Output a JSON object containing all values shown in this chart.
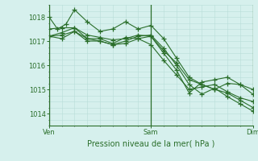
{
  "background_color": "#d6f0ed",
  "grid_color": "#b8ddd8",
  "line_color": "#2a6e2a",
  "marker": "+",
  "marker_size": 4,
  "title": "Pression niveau de la mer( hPa )",
  "xtick_labels": [
    "Ven",
    "Sam",
    "Dim"
  ],
  "xtick_positions": [
    0,
    48,
    96
  ],
  "ylim": [
    1013.5,
    1018.5
  ],
  "yticks": [
    1014,
    1015,
    1016,
    1017,
    1018
  ],
  "xlim": [
    0,
    96
  ],
  "series": [
    [
      0,
      1018.0,
      4,
      1017.5,
      8,
      1017.7,
      12,
      1018.3,
      18,
      1017.8,
      24,
      1017.4,
      30,
      1017.5,
      36,
      1017.8,
      42,
      1017.5,
      48,
      1017.65,
      54,
      1017.1,
      60,
      1016.3,
      66,
      1015.5,
      72,
      1015.2,
      78,
      1015.0,
      84,
      1014.85,
      90,
      1014.55,
      96,
      1014.25
    ],
    [
      0,
      1017.5,
      6,
      1017.55,
      12,
      1017.55,
      18,
      1017.1,
      24,
      1017.1,
      30,
      1016.9,
      36,
      1017.15,
      42,
      1017.1,
      48,
      1016.85,
      54,
      1016.2,
      60,
      1015.6,
      66,
      1015.0,
      72,
      1015.1,
      78,
      1015.2,
      84,
      1014.9,
      90,
      1014.65,
      96,
      1014.5
    ],
    [
      0,
      1017.2,
      6,
      1017.1,
      12,
      1017.4,
      18,
      1017.0,
      24,
      1017.0,
      30,
      1016.85,
      36,
      1016.9,
      42,
      1017.1,
      48,
      1017.2,
      54,
      1016.5,
      60,
      1015.8,
      66,
      1014.85,
      72,
      1015.3,
      78,
      1015.4,
      84,
      1015.5,
      90,
      1015.2,
      96,
      1015.0
    ],
    [
      0,
      1017.2,
      6,
      1017.35,
      12,
      1017.55,
      18,
      1017.25,
      24,
      1017.15,
      30,
      1017.05,
      36,
      1017.1,
      42,
      1017.25,
      48,
      1017.2,
      54,
      1016.6,
      60,
      1016.1,
      66,
      1015.4,
      72,
      1015.2,
      78,
      1015.0,
      84,
      1015.25,
      90,
      1015.2,
      96,
      1014.8
    ],
    [
      0,
      1017.2,
      6,
      1017.25,
      12,
      1017.4,
      18,
      1017.1,
      24,
      1017.0,
      30,
      1016.85,
      36,
      1017.0,
      42,
      1017.2,
      48,
      1017.25,
      54,
      1016.7,
      60,
      1016.0,
      66,
      1015.2,
      72,
      1014.8,
      78,
      1015.05,
      84,
      1014.7,
      90,
      1014.4,
      96,
      1014.1
    ]
  ]
}
